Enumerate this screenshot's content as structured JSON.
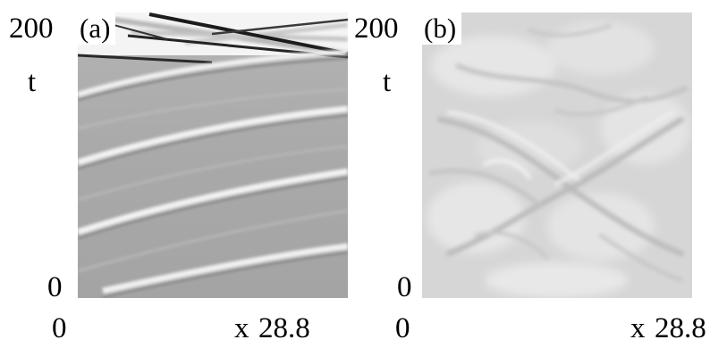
{
  "figure": {
    "panels": [
      {
        "label": "(a)",
        "y_axis": {
          "label": "t",
          "max_label": "200",
          "min_label": "0"
        },
        "x_axis": {
          "label": "x",
          "min_label": "0",
          "max_label": "28.8"
        }
      },
      {
        "label": "(b)",
        "y_axis": {
          "label": "t",
          "max_label": "200",
          "min_label": "0"
        },
        "x_axis": {
          "label": "x",
          "min_label": "0",
          "max_label": "28.8"
        }
      }
    ]
  },
  "colors": {
    "panel_a_background": "#a8a8a8",
    "panel_a_stripe_light": "#f2f2f2",
    "panel_a_stripe_dark": "#202020",
    "panel_b_background": "#d6d6d6",
    "panel_b_light": "#eeeeee",
    "panel_b_dark": "#b2b2b2"
  }
}
